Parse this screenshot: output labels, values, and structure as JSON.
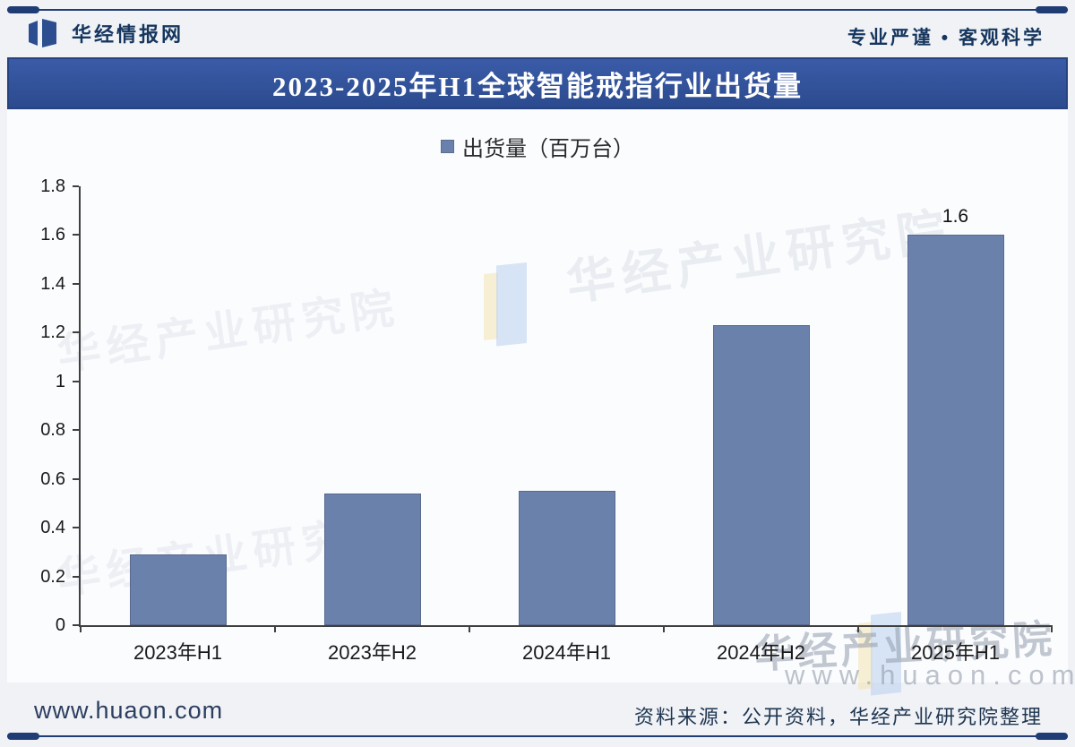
{
  "header": {
    "brand": "华经情报网",
    "slogan": "专业严谨 • 客观科学"
  },
  "title_bar": {
    "title": "2023-2025年H1全球智能戒指行业出货量"
  },
  "chart_data": {
    "type": "bar",
    "title": "2023-2025年H1全球智能戒指行业出货量",
    "legend_label": "出货量（百万台）",
    "series_name": "出货量",
    "unit": "百万台",
    "categories": [
      "2023年H1",
      "2023年H2",
      "2024年H1",
      "2024年H2",
      "2025年H1"
    ],
    "values": [
      0.29,
      0.54,
      0.55,
      1.23,
      1.6
    ],
    "data_labels": [
      "",
      "",
      "",
      "",
      "1.6"
    ],
    "ylim": [
      0,
      1.8
    ],
    "yticks": [
      0,
      0.2,
      0.4,
      0.6,
      0.8,
      1,
      1.2,
      1.4,
      1.6,
      1.8
    ],
    "grid": false,
    "legend_position": "top",
    "bar_color": "#6a81ac"
  },
  "watermarks": {
    "text": "华经产业研究院",
    "brand_text": "华经产业研究院",
    "site_text": "www.huaon.com"
  },
  "footer": {
    "site": "www.huaon.com",
    "source": "资料来源：公开资料，华经产业研究院整理"
  },
  "colors": {
    "page_background": "#f0f2f6",
    "panel_background": "#fbfcfe",
    "title_bar_background": "#32529a",
    "title_bar_border": "#27437f",
    "title_text": "#ffffff",
    "rule_line": "#1f3d74",
    "brand_text": "#16365f",
    "bar_fill": "#6a81ac",
    "bar_border": "#59698e",
    "axis": "#3f3f3f",
    "footer_text": "#1e3550"
  }
}
